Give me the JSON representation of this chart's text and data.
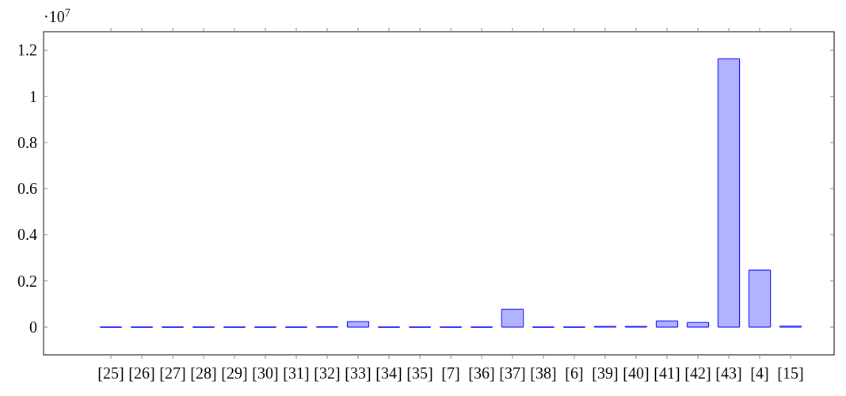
{
  "chart_data": {
    "type": "bar",
    "categories": [
      "[25]",
      "[26]",
      "[27]",
      "[28]",
      "[29]",
      "[30]",
      "[31]",
      "[32]",
      "[33]",
      "[34]",
      "[35]",
      "[7]",
      "[36]",
      "[37]",
      "[38]",
      "[6]",
      "[39]",
      "[40]",
      "[41]",
      "[42]",
      "[43]",
      "[4]",
      "[15]"
    ],
    "values": [
      0,
      0,
      0,
      0,
      0,
      0,
      0,
      0.001,
      0.024,
      0,
      0,
      0,
      0,
      0.078,
      0,
      0,
      0.003,
      0.003,
      0.027,
      0.02,
      1.163,
      0.247,
      0.004
    ],
    "color": "#0000ff",
    "ylim": [
      -0.12,
      1.28
    ],
    "yticks": [
      0,
      0.2,
      0.4,
      0.6,
      0.8,
      1,
      1.2
    ],
    "annotations": [
      "·10$^{7}$"
    ],
    "grid": false
  }
}
